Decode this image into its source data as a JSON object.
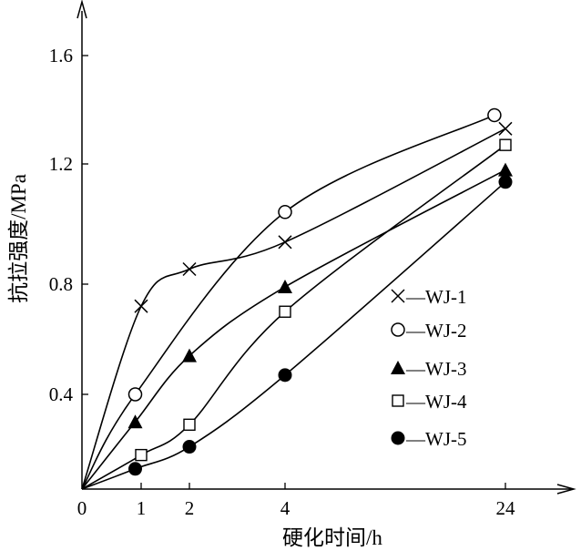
{
  "chart_data": {
    "type": "line",
    "title": "",
    "xlabel": "硬化时间/h",
    "ylabel": "抗拉强度/MPa",
    "x_ticks": [
      "0",
      "1",
      "2",
      "4",
      "24"
    ],
    "y_ticks": [
      "0.4",
      "0.8",
      "1.2",
      "1.6"
    ],
    "ylim": [
      0.05,
      1.75
    ],
    "legend_position": "right",
    "grid": false,
    "series": [
      {
        "name": "WJ-1",
        "marker": "x",
        "x": [
          1,
          2,
          4,
          24
        ],
        "y": [
          0.72,
          0.85,
          0.94,
          1.33
        ]
      },
      {
        "name": "WJ-2",
        "marker": "open-circle",
        "x": [
          0.9,
          4,
          23
        ],
        "y": [
          0.4,
          1.04,
          1.38
        ]
      },
      {
        "name": "WJ-3",
        "marker": "filled-triangle",
        "x": [
          0.9,
          2,
          4,
          24
        ],
        "y": [
          0.3,
          0.54,
          0.79,
          1.18
        ]
      },
      {
        "name": "WJ-4",
        "marker": "open-square",
        "x": [
          1,
          2,
          4,
          24
        ],
        "y": [
          0.18,
          0.29,
          0.7,
          1.27
        ]
      },
      {
        "name": "WJ-5",
        "marker": "filled-circle",
        "x": [
          0.9,
          2,
          4,
          24
        ],
        "y": [
          0.13,
          0.21,
          0.47,
          1.14
        ]
      }
    ],
    "legend_prefix": "—"
  }
}
